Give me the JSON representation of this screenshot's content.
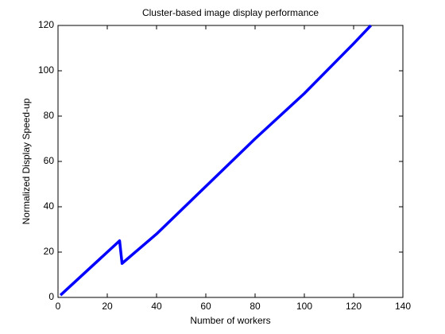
{
  "chart_data": {
    "type": "line",
    "title": "Cluster-based image display performance",
    "xlabel": "Number of workers",
    "ylabel": "Normalized Display Speed-up",
    "x": [
      1,
      25,
      26,
      40,
      60,
      80,
      100,
      120,
      127
    ],
    "series": [
      {
        "name": "Speed-up",
        "color": "#0000ff",
        "values": [
          1,
          25,
          15,
          28,
          49,
          70,
          90,
          112,
          120
        ]
      }
    ],
    "xlim": [
      0,
      140
    ],
    "ylim": [
      0,
      120
    ],
    "xticks": [
      0,
      20,
      40,
      60,
      80,
      100,
      120,
      140
    ],
    "yticks": [
      0,
      20,
      40,
      60,
      80,
      100,
      120
    ],
    "grid": false
  }
}
